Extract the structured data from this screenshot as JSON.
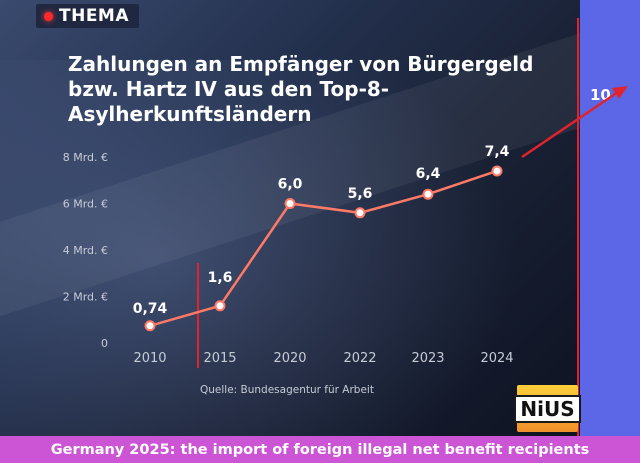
{
  "header": {
    "badge": "THEMA"
  },
  "chart_data": {
    "type": "line",
    "title": "Zahlungen an Empfänger von Bürgergeld bzw. Hartz IV aus den Top-8-Asylherkunftsländern",
    "categories": [
      "2010",
      "2015",
      "2020",
      "2022",
      "2023",
      "2024"
    ],
    "series": [
      {
        "values": [
          0.74,
          1.6,
          6.0,
          5.6,
          6.4,
          7.4
        ]
      }
    ],
    "data_labels": [
      "0,74",
      "1,6",
      "6,0",
      "5,6",
      "6,4",
      "7,4"
    ],
    "y_ticks": [
      {
        "value": 0,
        "label": "0"
      },
      {
        "value": 2,
        "label": "2 Mrd. €"
      },
      {
        "value": 4,
        "label": "4 Mrd. €"
      },
      {
        "value": 6,
        "label": "6 Mrd. €"
      },
      {
        "value": 8,
        "label": "8 Mrd. €"
      }
    ],
    "ylim": [
      0,
      8
    ],
    "grid": false,
    "line_color": "#ff7a66",
    "source": "Quelle: Bundesagentur für Arbeit",
    "annotations": {
      "extrapolation_value": "10"
    }
  },
  "colors": {
    "annotation_red": "#e0232c",
    "caption_bg": "#cc55d6",
    "side_panel": "#5b67e6"
  },
  "logo": {
    "text": "NiUS"
  },
  "caption": "Germany 2025: the import of foreign illegal net benefit recipients"
}
